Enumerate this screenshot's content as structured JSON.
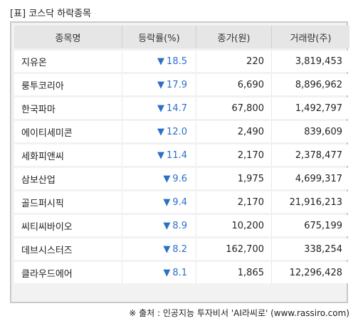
{
  "caption": "[표] 코스닥 하락종목",
  "table": {
    "headers": [
      "종목명",
      "등락률(%)",
      "종가(원)",
      "거래량(주)"
    ],
    "arrow_symbol": "▼",
    "rows": [
      {
        "name": "지유온",
        "change": "18.5",
        "close": "220",
        "volume": "3,819,453"
      },
      {
        "name": "룽투코리아",
        "change": "17.9",
        "close": "6,690",
        "volume": "8,896,962"
      },
      {
        "name": "한국파마",
        "change": "14.7",
        "close": "67,800",
        "volume": "1,492,797"
      },
      {
        "name": "에이티세미콘",
        "change": "12.0",
        "close": "2,490",
        "volume": "839,609"
      },
      {
        "name": "세화피앤씨",
        "change": "11.4",
        "close": "2,170",
        "volume": "2,378,477"
      },
      {
        "name": "삼보산업",
        "change": "9.6",
        "close": "1,975",
        "volume": "4,699,317"
      },
      {
        "name": "골드퍼시픽",
        "change": "9.4",
        "close": "2,170",
        "volume": "21,916,213"
      },
      {
        "name": "씨티씨바이오",
        "change": "8.9",
        "close": "10,200",
        "volume": "675,199"
      },
      {
        "name": "데브시스터즈",
        "change": "8.2",
        "close": "162,700",
        "volume": "338,254"
      },
      {
        "name": "클라우드에어",
        "change": "8.1",
        "close": "1,865",
        "volume": "12,296,428"
      }
    ]
  },
  "source": "※ 출처 : 인공지능 투자비서 'AI라씨로' (www.rassiro.com)",
  "colors": {
    "down_arrow": "#2a6fc9",
    "header_bg": "#e6e6e6",
    "frame_bg": "#f2f2f2"
  }
}
